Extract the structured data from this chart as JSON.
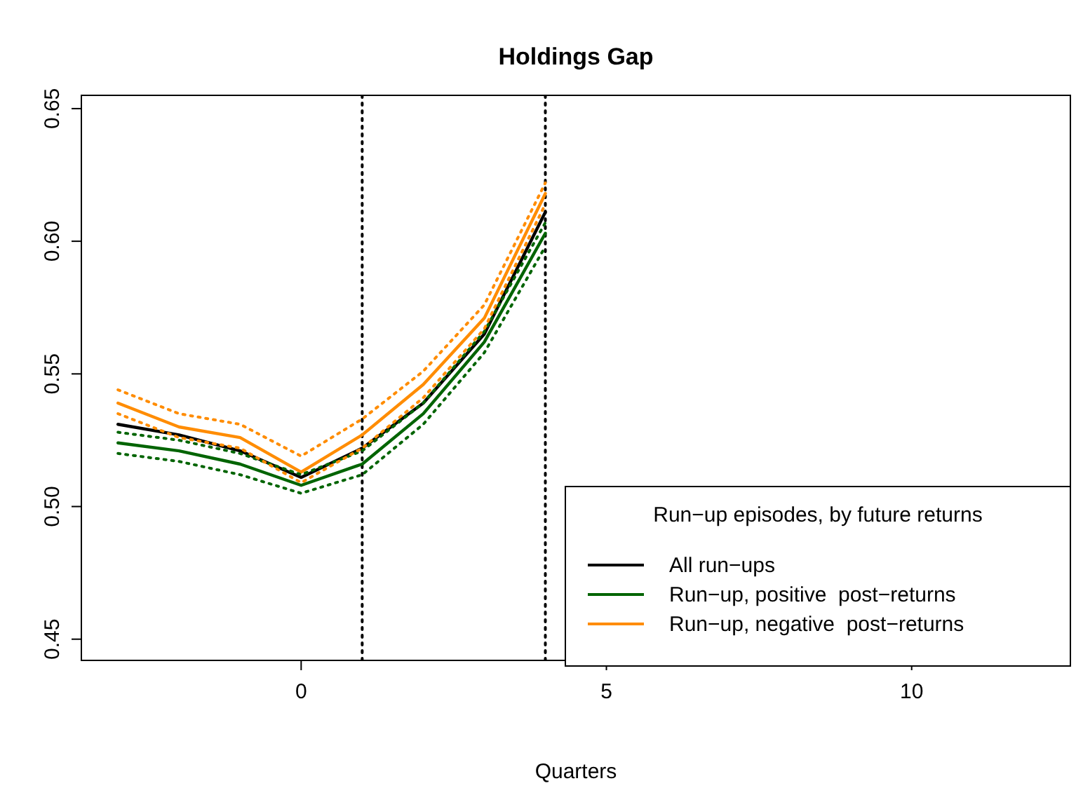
{
  "chart_data": {
    "type": "line",
    "title": "Holdings Gap",
    "xlabel": "Quarters",
    "legend_title": "Run−up episodes, by future returns",
    "x": [
      -3,
      -2,
      -1,
      0,
      1,
      2,
      3,
      4
    ],
    "series": [
      {
        "name": "All run−ups",
        "color": "#000000",
        "values": [
          0.531,
          0.527,
          0.521,
          0.511,
          0.522,
          0.539,
          0.565,
          0.611
        ]
      },
      {
        "name": "Run−up, positive  post−returns",
        "color": "#006400",
        "values": [
          0.524,
          0.521,
          0.516,
          0.508,
          0.516,
          0.535,
          0.562,
          0.603
        ]
      },
      {
        "name": "Run−up, negative  post−returns",
        "color": "#ff8c00",
        "values": [
          0.539,
          0.53,
          0.526,
          0.513,
          0.527,
          0.546,
          0.571,
          0.618
        ]
      },
      {
        "color": "#006400",
        "line_style": "dotted",
        "values": [
          0.52,
          0.517,
          0.512,
          0.505,
          0.512,
          0.531,
          0.558,
          0.598
        ]
      },
      {
        "color": "#006400",
        "line_style": "dotted",
        "values": [
          0.528,
          0.525,
          0.52,
          0.512,
          0.521,
          0.539,
          0.566,
          0.607
        ]
      },
      {
        "color": "#ff8c00",
        "line_style": "dotted",
        "values": [
          0.535,
          0.526,
          0.522,
          0.509,
          0.522,
          0.541,
          0.567,
          0.614
        ]
      },
      {
        "color": "#ff8c00",
        "line_style": "dotted",
        "values": [
          0.544,
          0.535,
          0.531,
          0.519,
          0.533,
          0.551,
          0.576,
          0.622
        ]
      }
    ],
    "xlim": [
      -3.6,
      12.6
    ],
    "ylim": [
      0.442,
      0.655
    ],
    "xticks": [
      0,
      5,
      10
    ],
    "yticks": [
      {
        "value": 0.45,
        "label": "0.45"
      },
      {
        "value": 0.5,
        "label": "0.50"
      },
      {
        "value": 0.55,
        "label": "0.55"
      },
      {
        "value": 0.6,
        "label": "0.60"
      },
      {
        "value": 0.65,
        "label": "0.65"
      }
    ],
    "ref_lines": [
      {
        "axis": "x",
        "value": 1,
        "color": "#000000",
        "line_style": "dotted"
      },
      {
        "axis": "x",
        "value": 4,
        "color": "#000000",
        "line_style": "dotted"
      }
    ],
    "legend": "bottom right",
    "grid": false,
    "line_style": "solid",
    "marker": "none"
  }
}
